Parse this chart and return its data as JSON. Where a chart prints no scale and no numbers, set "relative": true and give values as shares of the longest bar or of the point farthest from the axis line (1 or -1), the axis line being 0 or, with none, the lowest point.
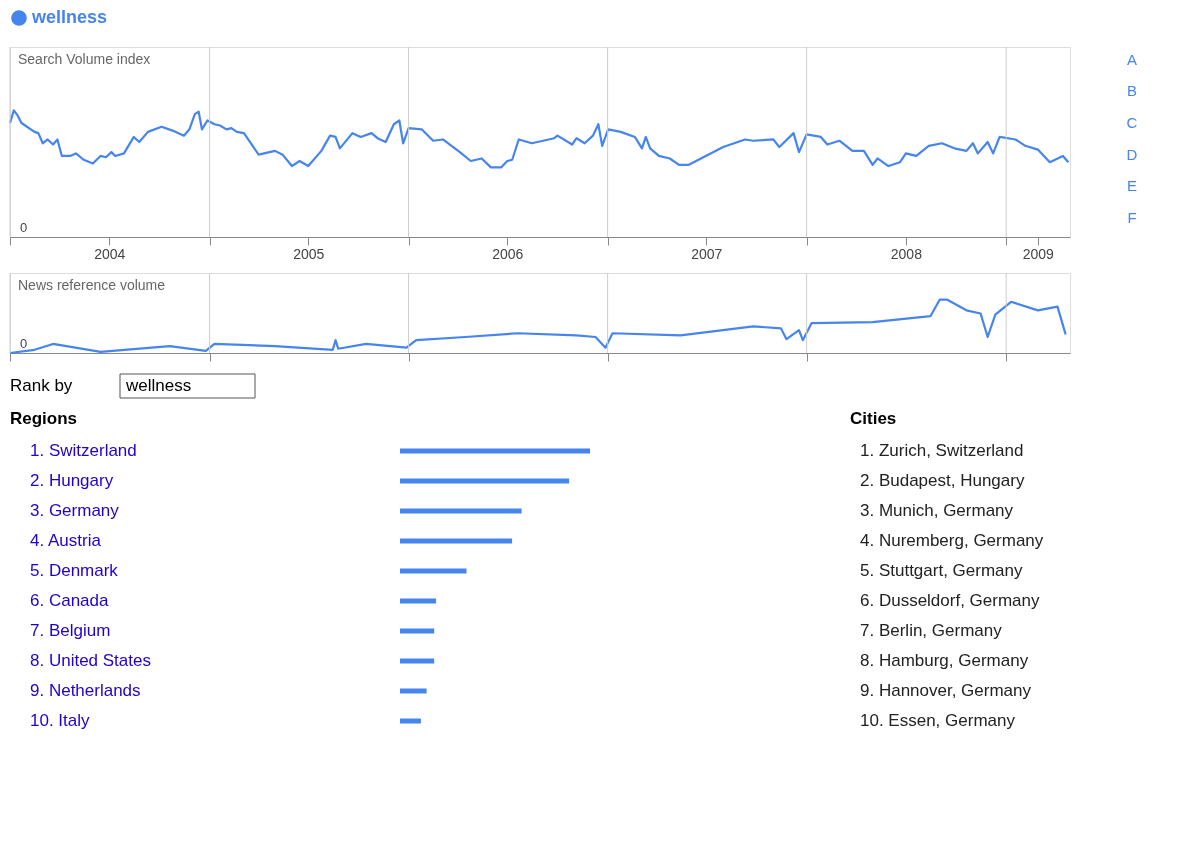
{
  "chart_data": [
    {
      "type": "line",
      "ylabel": "Search Volume index",
      "relative": true,
      "legend": "top left",
      "grid": "x",
      "xlim": [
        "2004-01-01",
        "2009-04-28"
      ],
      "xticks": [
        {
          "value": "2004-01-01",
          "label": null
        },
        {
          "value": "2004-07-01",
          "label": "2004"
        },
        {
          "value": "2005-01-01",
          "label": null
        },
        {
          "value": "2005-07-01",
          "label": "2005"
        },
        {
          "value": "2006-01-01",
          "label": null
        },
        {
          "value": "2006-07-01",
          "label": "2006"
        },
        {
          "value": "2007-01-01",
          "label": null
        },
        {
          "value": "2007-07-01",
          "label": "2007"
        },
        {
          "value": "2008-01-01",
          "label": null
        },
        {
          "value": "2008-07-01",
          "label": "2008"
        },
        {
          "value": "2009-01-01",
          "label": null
        },
        {
          "value": "2009-02-28",
          "label": "2009"
        }
      ],
      "x": [
        "2004-01-01",
        "2004-01-08",
        "2004-01-15",
        "2004-01-22",
        "2004-02-15",
        "2004-02-22",
        "2004-03-01",
        "2004-03-10",
        "2004-03-20",
        "2004-03-28",
        "2004-04-05",
        "2004-04-20",
        "2004-05-01",
        "2004-05-15",
        "2004-06-01",
        "2004-06-15",
        "2004-06-25",
        "2004-07-05",
        "2004-07-12",
        "2004-07-28",
        "2004-08-15",
        "2004-08-25",
        "2004-09-10",
        "2004-10-05",
        "2004-10-25",
        "2004-11-15",
        "2004-11-25",
        "2004-12-05",
        "2004-12-12",
        "2004-12-18",
        "2004-12-28",
        "2005-01-10",
        "2005-01-20",
        "2005-02-01",
        "2005-02-10",
        "2005-02-20",
        "2005-03-05",
        "2005-04-01",
        "2005-05-01",
        "2005-05-15",
        "2005-06-01",
        "2005-06-15",
        "2005-07-01",
        "2005-07-25",
        "2005-08-10",
        "2005-08-20",
        "2005-08-28",
        "2005-09-20",
        "2005-10-05",
        "2005-10-25",
        "2005-11-05",
        "2005-11-20",
        "2005-12-05",
        "2005-12-15",
        "2005-12-22",
        "2006-01-01",
        "2006-01-25",
        "2006-02-15",
        "2006-03-05",
        "2006-04-05",
        "2006-04-25",
        "2006-05-15",
        "2006-06-01",
        "2006-06-20",
        "2006-07-01",
        "2006-07-10",
        "2006-07-22",
        "2006-08-15",
        "2006-09-25",
        "2006-10-01",
        "2006-10-28",
        "2006-11-05",
        "2006-11-20",
        "2006-12-05",
        "2006-12-15",
        "2006-12-22",
        "2007-01-02",
        "2007-01-25",
        "2007-02-20",
        "2007-03-05",
        "2007-03-12",
        "2007-03-20",
        "2007-04-05",
        "2007-04-25",
        "2007-05-12",
        "2007-05-30",
        "2007-06-30",
        "2007-08-01",
        "2007-09-10",
        "2007-09-25",
        "2007-11-01",
        "2007-11-12",
        "2007-12-08",
        "2007-12-18",
        "2008-01-01",
        "2008-01-27",
        "2008-02-08",
        "2008-03-01",
        "2008-03-25",
        "2008-04-15",
        "2008-05-01",
        "2008-05-10",
        "2008-05-30",
        "2008-06-20",
        "2008-07-01",
        "2008-07-20",
        "2008-08-12",
        "2008-09-05",
        "2008-09-28",
        "2008-10-20",
        "2008-11-01",
        "2008-11-10",
        "2008-11-28",
        "2008-12-08",
        "2008-12-20",
        "2009-01-18",
        "2009-02-05",
        "2009-02-28",
        "2009-03-22",
        "2009-04-15",
        "2009-04-25"
      ],
      "series": [
        {
          "name": "wellness",
          "color": "#4684ee",
          "values": [
            0.9,
            1.0,
            0.96,
            0.9,
            0.83,
            0.82,
            0.74,
            0.77,
            0.73,
            0.77,
            0.64,
            0.64,
            0.66,
            0.61,
            0.58,
            0.64,
            0.63,
            0.67,
            0.64,
            0.66,
            0.79,
            0.75,
            0.83,
            0.87,
            0.84,
            0.8,
            0.85,
            0.97,
            0.99,
            0.85,
            0.92,
            0.89,
            0.88,
            0.85,
            0.86,
            0.83,
            0.82,
            0.65,
            0.68,
            0.65,
            0.56,
            0.6,
            0.56,
            0.68,
            0.8,
            0.79,
            0.7,
            0.82,
            0.79,
            0.82,
            0.78,
            0.75,
            0.89,
            0.92,
            0.74,
            0.86,
            0.85,
            0.76,
            0.77,
            0.67,
            0.6,
            0.62,
            0.55,
            0.55,
            0.6,
            0.61,
            0.77,
            0.74,
            0.78,
            0.8,
            0.73,
            0.78,
            0.74,
            0.8,
            0.89,
            0.72,
            0.85,
            0.83,
            0.79,
            0.7,
            0.79,
            0.7,
            0.64,
            0.62,
            0.57,
            0.57,
            0.64,
            0.71,
            0.77,
            0.76,
            0.77,
            0.71,
            0.82,
            0.67,
            0.81,
            0.79,
            0.73,
            0.76,
            0.68,
            0.68,
            0.57,
            0.62,
            0.56,
            0.59,
            0.66,
            0.64,
            0.72,
            0.74,
            0.7,
            0.68,
            0.74,
            0.66,
            0.75,
            0.66,
            0.79,
            0.77,
            0.72,
            0.69,
            0.59,
            0.64,
            0.59
          ]
        }
      ],
      "annotations": [
        "0",
        "A",
        "B",
        "C",
        "D",
        "E",
        "F"
      ]
    },
    {
      "type": "line",
      "ylabel": "News reference volume",
      "relative": true,
      "grid": "x",
      "tick_labels": false,
      "xlim": [
        "2004-01-01",
        "2009-04-28"
      ],
      "xticks": [
        {
          "value": "2004-01-01",
          "label": null
        },
        {
          "value": "2005-01-01",
          "label": null
        },
        {
          "value": "2006-01-01",
          "label": null
        },
        {
          "value": "2007-01-01",
          "label": null
        },
        {
          "value": "2008-01-01",
          "label": null
        },
        {
          "value": "2009-01-01",
          "label": null
        }
      ],
      "x": [
        "2004-01-01",
        "2004-02-15",
        "2004-03-20",
        "2004-06-15",
        "2004-10-20",
        "2004-12-25",
        "2005-01-10",
        "2005-05-01",
        "2005-08-15",
        "2005-08-20",
        "2005-08-25",
        "2005-10-15",
        "2005-12-28",
        "2006-01-15",
        "2006-04-15",
        "2006-07-20",
        "2006-11-05",
        "2006-12-10",
        "2006-12-28",
        "2007-01-10",
        "2007-05-15",
        "2007-09-25",
        "2007-11-15",
        "2007-11-25",
        "2007-12-18",
        "2007-12-25",
        "2008-01-10",
        "2008-05-01",
        "2008-08-15",
        "2008-09-01",
        "2008-09-15",
        "2008-10-20",
        "2008-11-15",
        "2008-11-28",
        "2008-12-12",
        "2009-01-10",
        "2009-02-28",
        "2009-04-05",
        "2009-04-20"
      ],
      "series": [
        {
          "color": "#4684ee",
          "values": [
            0,
            0.06,
            0.17,
            0.02,
            0.13,
            0.04,
            0.17,
            0.13,
            0.06,
            0.24,
            0.08,
            0.17,
            0.1,
            0.24,
            0.3,
            0.37,
            0.33,
            0.3,
            0.1,
            0.37,
            0.33,
            0.5,
            0.46,
            0.26,
            0.43,
            0.24,
            0.56,
            0.58,
            0.69,
            1.0,
            1.0,
            0.8,
            0.74,
            0.3,
            0.72,
            0.96,
            0.8,
            0.87,
            0.35
          ]
        }
      ],
      "annotations": [
        "0"
      ]
    },
    {
      "type": "bar",
      "orientation": "horizontal",
      "relative": true,
      "title": "Regions",
      "color": "#4684ee",
      "categories": [
        "1. Switzerland",
        "2. Hungary",
        "3. Germany",
        "4. Austria",
        "5. Denmark",
        "6. Canada",
        "7. Belgium",
        "8. United States",
        "9. Netherlands",
        "10. Italy"
      ],
      "values": [
        1.0,
        0.89,
        0.64,
        0.59,
        0.35,
        0.19,
        0.18,
        0.18,
        0.14,
        0.11
      ],
      "annotations": [
        "Rank by",
        "wellness"
      ]
    },
    {
      "type": "other",
      "title": "Cities",
      "annotations": [
        "1. Zurich, Switzerland",
        "2. Budapest, Hungary",
        "3. Munich, Germany",
        "4. Nuremberg, Germany",
        "5. Stuttgart, Germany",
        "6. Dusseldorf, Germany",
        "7. Berlin, Germany",
        "8. Hamburg, Germany",
        "9. Hannover, Germany",
        "10. Essen, Germany"
      ]
    }
  ]
}
